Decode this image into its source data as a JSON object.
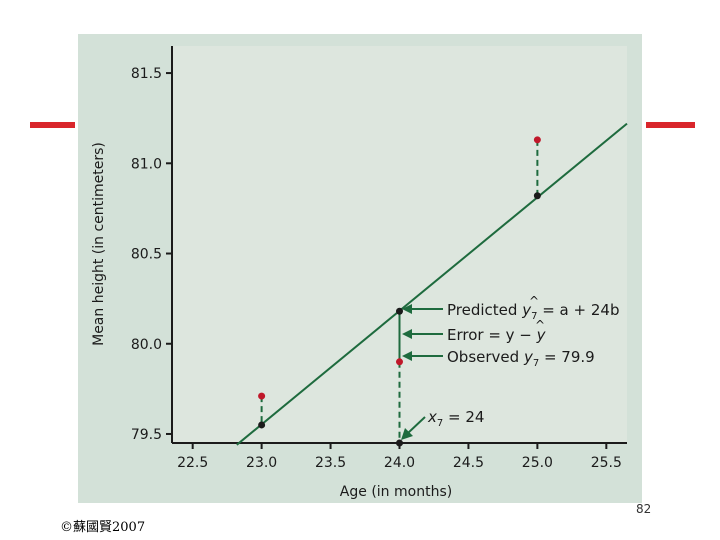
{
  "page": {
    "page_number": "82",
    "copyright": "©蘇國賢2007"
  },
  "colors": {
    "accent_bar": "#d9262b",
    "panel_bg": "#d3e1d8",
    "plot_bg": "#dde6de",
    "line": "#1e6b3e",
    "observed_point": "#c0182a",
    "predicted_point": "#1b1b1b",
    "axis": "#1b1b1b",
    "annotation_arrow": "#1e6b3e"
  },
  "chart_data": {
    "type": "scatter",
    "xlabel": "Age (in months)",
    "ylabel": "Mean height (in centimeters)",
    "xlim": [
      22.35,
      25.65
    ],
    "ylim": [
      79.45,
      81.65
    ],
    "x_ticks": [
      "22.5",
      "23.0",
      "23.5",
      "24.0",
      "24.5",
      "25.0",
      "25.5"
    ],
    "y_ticks": [
      "79.5",
      "80.0",
      "80.5",
      "81.0",
      "81.5"
    ],
    "grid": false,
    "regression_line": {
      "x": [
        22.82,
        25.65
      ],
      "y": [
        79.44,
        81.22
      ]
    },
    "observed_points": [
      {
        "x": 23.0,
        "y": 79.71
      },
      {
        "x": 24.0,
        "y": 79.9
      },
      {
        "x": 25.0,
        "y": 81.13
      }
    ],
    "predicted_points": [
      {
        "x": 23.0,
        "y": 79.55
      },
      {
        "x": 24.0,
        "y": 80.18
      },
      {
        "x": 25.0,
        "y": 80.82
      }
    ],
    "axis_point": {
      "x": 24.0,
      "y": 79.45
    },
    "annotations": {
      "predicted_word": "Predicted ",
      "predicted_y": "y",
      "predicted_sub": "7",
      "predicted_rest": " = a + 24b",
      "error_text": "Error = y − ",
      "error_hat": "y",
      "observed_word": "Observed ",
      "observed_y": "y",
      "observed_sub": "7",
      "observed_rest": " = 79.9",
      "x7_x": "x",
      "x7_sub": "7",
      "x7_rest": " = 24"
    }
  }
}
